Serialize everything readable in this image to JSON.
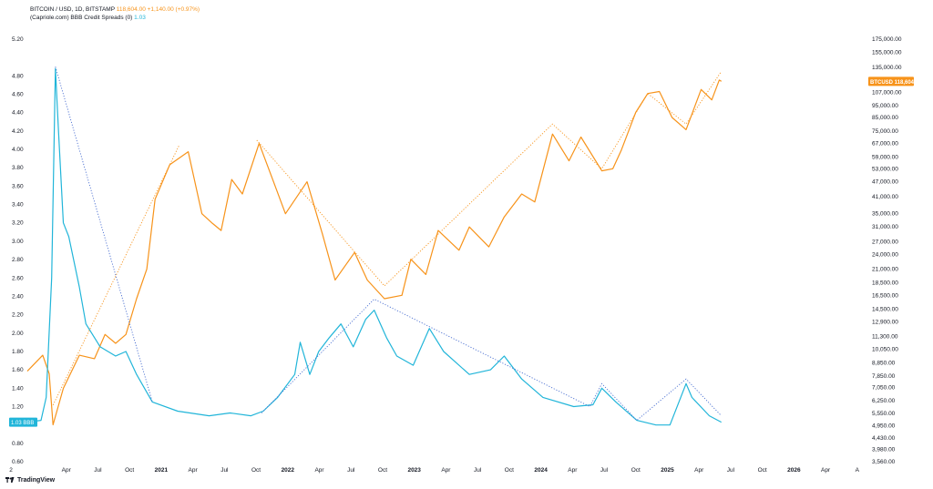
{
  "header": {
    "series1_label": "BITCOIN / USD, 1D, BITSTAMP",
    "series1_values": "118,604.00  +1,140.00 (+0.97%)",
    "series2_label": "(Capriole.com) BBB Credit Spreads (0)",
    "series2_value": "1.03"
  },
  "brand": "TradingView",
  "colors": {
    "btc": "#f7931a",
    "bbb": "#21b5d9",
    "btc_trend": "#f7931a",
    "bbb_trend": "#4a6fd1"
  },
  "chart_data": {
    "type": "line",
    "x_tick_labels": [
      "2",
      "Apr",
      "Jul",
      "Oct",
      "2021",
      "Apr",
      "Jul",
      "Oct",
      "2022",
      "Apr",
      "Jul",
      "Oct",
      "2023",
      "Apr",
      "Jul",
      "Oct",
      "2024",
      "Apr",
      "Jul",
      "Oct",
      "2025",
      "Apr",
      "Jul",
      "Oct",
      "2026",
      "Apr",
      "A"
    ],
    "x_range": [
      "2020-01-01",
      "2026-09-01"
    ],
    "left_axis": {
      "series": "BBB Credit Spreads",
      "range": [
        0.6,
        5.2
      ],
      "ticks": [
        "5.20",
        "4.80",
        "4.60",
        "4.40",
        "4.20",
        "4.00",
        "3.80",
        "3.60",
        "3.40",
        "3.20",
        "3.00",
        "2.80",
        "2.60",
        "2.40",
        "2.20",
        "2.00",
        "1.80",
        "1.60",
        "1.40",
        "1.20",
        "1.00",
        "0.80",
        "0.60"
      ],
      "last_label": "1.03",
      "last_tag": "BBB"
    },
    "right_axis": {
      "series": "BTCUSD",
      "scale": "log",
      "range": [
        3560,
        175000
      ],
      "ticks": [
        "175,000.00",
        "155,000.00",
        "135,000.00",
        "107,000.00",
        "95,000.00",
        "85,000.00",
        "75,000.00",
        "67,000.00",
        "59,000.00",
        "53,000.00",
        "47,000.00",
        "41,000.00",
        "35,000.00",
        "31,000.00",
        "27,000.00",
        "24,000.00",
        "21,000.00",
        "18,500.00",
        "16,500.00",
        "14,500.00",
        "12,900.00",
        "11,300.00",
        "10,050.00",
        "8,850.00",
        "7,850.00",
        "7,050.00",
        "6,250.00",
        "5,550.00",
        "4,950.00",
        "4,430.00",
        "3,980.00",
        "3,560.00"
      ],
      "last_label": "BTCUSD",
      "last_value": "118,604.00"
    },
    "series": [
      {
        "name": "BITCOIN / USD",
        "axis": "right",
        "points": [
          [
            "2020-01-01",
            8200
          ],
          [
            "2020-02-15",
            9500
          ],
          [
            "2020-03-05",
            8000
          ],
          [
            "2020-03-16",
            5000
          ],
          [
            "2020-04-15",
            7000
          ],
          [
            "2020-06-01",
            9500
          ],
          [
            "2020-07-15",
            9200
          ],
          [
            "2020-08-15",
            11500
          ],
          [
            "2020-09-15",
            10600
          ],
          [
            "2020-10-15",
            11500
          ],
          [
            "2020-11-15",
            16000
          ],
          [
            "2020-12-15",
            21000
          ],
          [
            "2021-01-08",
            40000
          ],
          [
            "2021-02-20",
            55000
          ],
          [
            "2021-04-15",
            62000
          ],
          [
            "2021-05-25",
            35000
          ],
          [
            "2021-06-25",
            32000
          ],
          [
            "2021-07-20",
            30000
          ],
          [
            "2021-08-20",
            48000
          ],
          [
            "2021-09-20",
            42000
          ],
          [
            "2021-11-08",
            67000
          ],
          [
            "2021-12-20",
            47000
          ],
          [
            "2022-01-24",
            35000
          ],
          [
            "2022-03-28",
            47000
          ],
          [
            "2022-05-12",
            29000
          ],
          [
            "2022-06-18",
            19000
          ],
          [
            "2022-08-14",
            24500
          ],
          [
            "2022-09-20",
            19000
          ],
          [
            "2022-11-09",
            16000
          ],
          [
            "2022-12-30",
            16500
          ],
          [
            "2023-01-25",
            23000
          ],
          [
            "2023-03-10",
            20000
          ],
          [
            "2023-04-15",
            30000
          ],
          [
            "2023-06-15",
            25000
          ],
          [
            "2023-07-15",
            31000
          ],
          [
            "2023-09-10",
            25800
          ],
          [
            "2023-10-25",
            34000
          ],
          [
            "2023-12-15",
            42000
          ],
          [
            "2024-01-22",
            39000
          ],
          [
            "2024-03-14",
            73000
          ],
          [
            "2024-05-01",
            57000
          ],
          [
            "2024-06-05",
            71000
          ],
          [
            "2024-08-05",
            52000
          ],
          [
            "2024-09-06",
            53000
          ],
          [
            "2024-10-01",
            63000
          ],
          [
            "2024-11-12",
            89000
          ],
          [
            "2024-12-17",
            106000
          ],
          [
            "2025-01-20",
            108000
          ],
          [
            "2025-02-26",
            85000
          ],
          [
            "2025-04-08",
            76000
          ],
          [
            "2025-05-22",
            110000
          ],
          [
            "2025-06-22",
            100000
          ],
          [
            "2025-07-14",
            120000
          ],
          [
            "2025-07-20",
            118604
          ]
        ]
      },
      {
        "name": "BBB Credit Spreads",
        "axis": "left",
        "points": [
          [
            "2020-01-01",
            1.03
          ],
          [
            "2020-02-10",
            1.05
          ],
          [
            "2020-02-25",
            1.3
          ],
          [
            "2020-03-12",
            2.6
          ],
          [
            "2020-03-23",
            4.88
          ],
          [
            "2020-04-01",
            4.2
          ],
          [
            "2020-04-15",
            3.2
          ],
          [
            "2020-05-01",
            3.05
          ],
          [
            "2020-06-01",
            2.5
          ],
          [
            "2020-06-20",
            2.1
          ],
          [
            "2020-08-01",
            1.85
          ],
          [
            "2020-09-15",
            1.75
          ],
          [
            "2020-10-15",
            1.8
          ],
          [
            "2020-11-15",
            1.55
          ],
          [
            "2020-12-31",
            1.25
          ],
          [
            "2021-03-15",
            1.15
          ],
          [
            "2021-06-15",
            1.1
          ],
          [
            "2021-08-15",
            1.13
          ],
          [
            "2021-10-15",
            1.1
          ],
          [
            "2021-11-20",
            1.15
          ],
          [
            "2022-01-01",
            1.3
          ],
          [
            "2022-02-20",
            1.55
          ],
          [
            "2022-03-08",
            1.9
          ],
          [
            "2022-04-05",
            1.55
          ],
          [
            "2022-05-01",
            1.8
          ],
          [
            "2022-06-01",
            1.95
          ],
          [
            "2022-07-05",
            2.1
          ],
          [
            "2022-08-10",
            1.85
          ],
          [
            "2022-09-15",
            2.15
          ],
          [
            "2022-10-10",
            2.25
          ],
          [
            "2022-11-15",
            1.95
          ],
          [
            "2022-12-15",
            1.75
          ],
          [
            "2023-02-01",
            1.65
          ],
          [
            "2023-03-20",
            2.05
          ],
          [
            "2023-05-01",
            1.8
          ],
          [
            "2023-07-15",
            1.55
          ],
          [
            "2023-09-15",
            1.6
          ],
          [
            "2023-10-25",
            1.75
          ],
          [
            "2023-12-15",
            1.5
          ],
          [
            "2024-02-15",
            1.3
          ],
          [
            "2024-05-15",
            1.2
          ],
          [
            "2024-07-10",
            1.22
          ],
          [
            "2024-08-05",
            1.4
          ],
          [
            "2024-09-15",
            1.25
          ],
          [
            "2024-11-15",
            1.05
          ],
          [
            "2025-01-10",
            1.0
          ],
          [
            "2025-02-20",
            1.0
          ],
          [
            "2025-04-08",
            1.45
          ],
          [
            "2025-04-25",
            1.3
          ],
          [
            "2025-06-15",
            1.1
          ],
          [
            "2025-07-20",
            1.03
          ]
        ]
      }
    ],
    "trendlines": [
      {
        "series": "BITCOIN / USD",
        "points": [
          [
            "2020-03-16",
            6000
          ],
          [
            "2021-03-20",
            66000
          ]
        ]
      },
      {
        "series": "BITCOIN / USD",
        "points": [
          [
            "2021-11-01",
            69000
          ],
          [
            "2022-11-09",
            18000
          ],
          [
            "2024-03-14",
            80000
          ],
          [
            "2024-08-05",
            53000
          ],
          [
            "2024-12-17",
            106000
          ],
          [
            "2025-04-08",
            80000
          ],
          [
            "2025-07-20",
            130000
          ]
        ]
      },
      {
        "series": "BBB Credit Spreads",
        "points": [
          [
            "2020-03-23",
            4.9
          ],
          [
            "2020-12-31",
            1.25
          ]
        ]
      },
      {
        "series": "BBB Credit Spreads",
        "points": [
          [
            "2021-11-15",
            1.13
          ],
          [
            "2022-10-10",
            2.37
          ],
          [
            "2024-07-01",
            1.2
          ],
          [
            "2024-08-05",
            1.45
          ],
          [
            "2024-11-15",
            1.05
          ],
          [
            "2025-04-08",
            1.5
          ],
          [
            "2025-07-20",
            1.1
          ]
        ]
      }
    ]
  }
}
